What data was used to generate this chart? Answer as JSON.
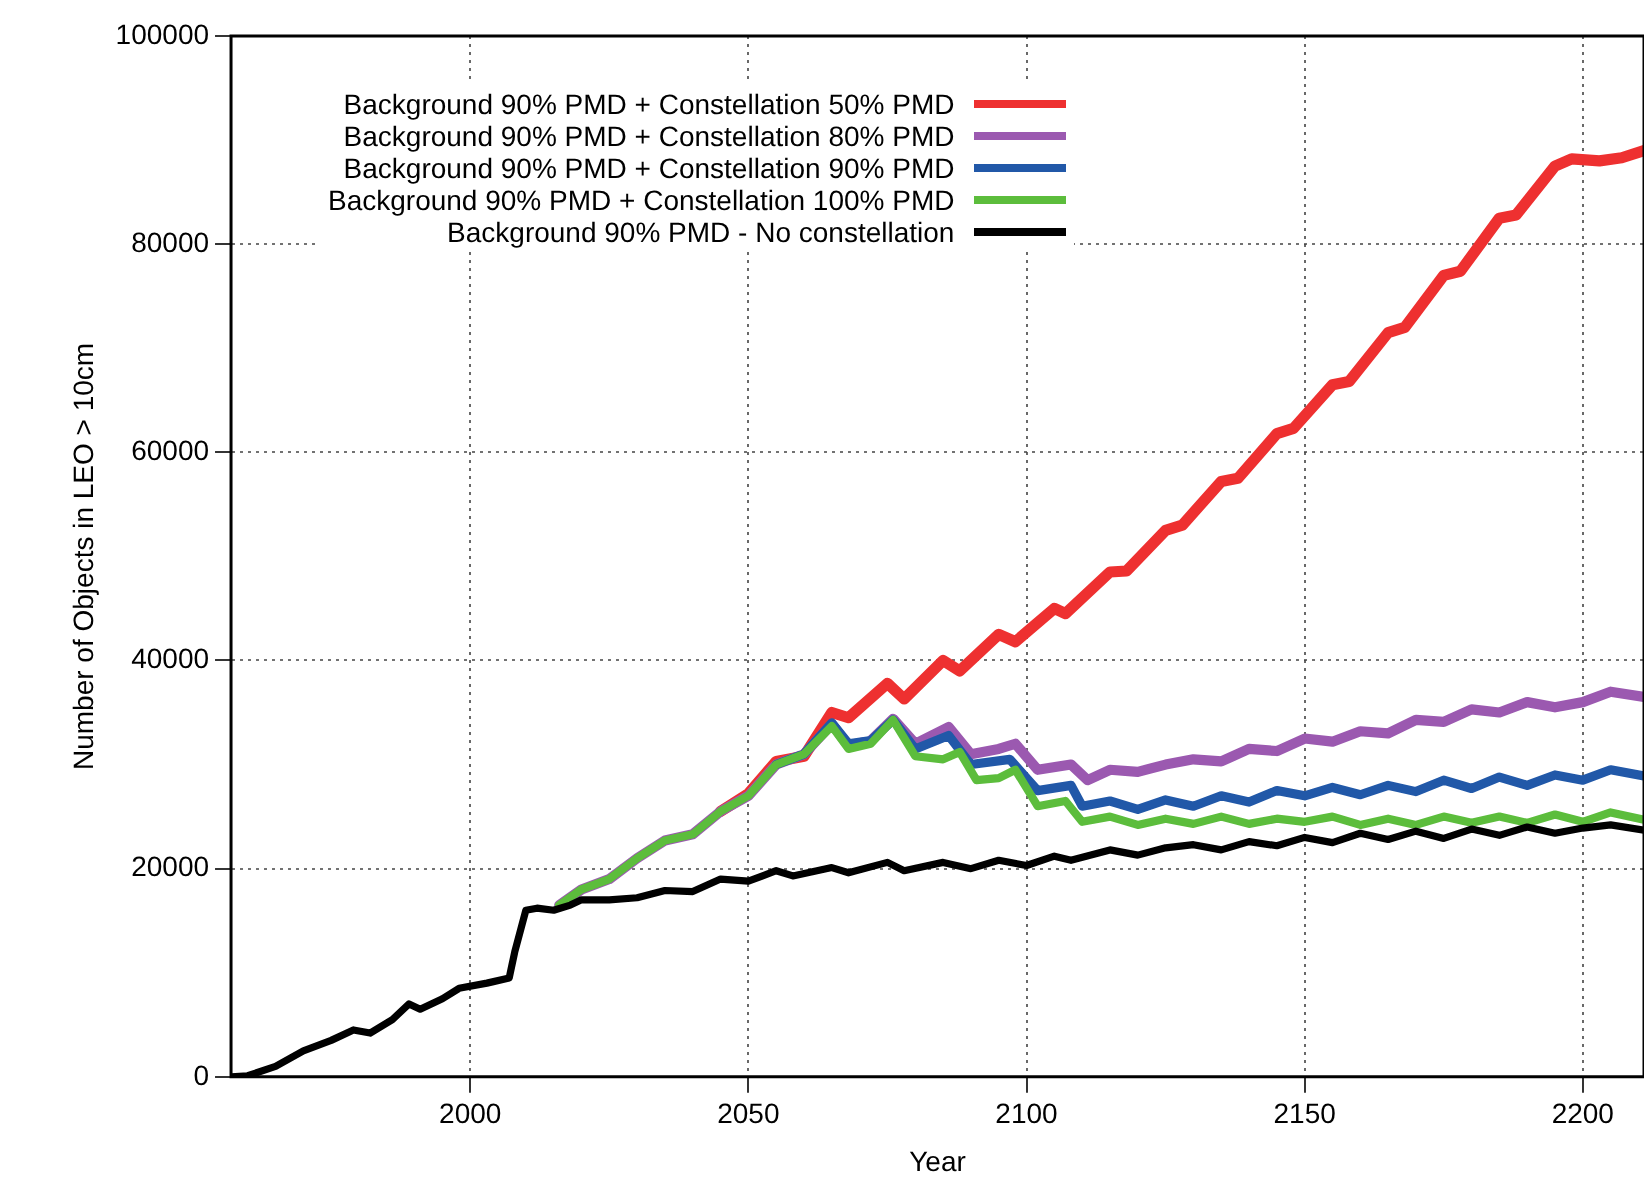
{
  "chart_data": {
    "type": "line",
    "xlabel": "Year",
    "ylabel": "Number of Objects in LEO > 10cm",
    "xlim": [
      1957,
      2211
    ],
    "xticks": [
      2000,
      2050,
      2100,
      2150,
      2200
    ],
    "ylim": [
      0,
      100000
    ],
    "yticks": [
      0,
      20000,
      40000,
      60000,
      80000,
      100000
    ],
    "grid": true,
    "legend": "top left",
    "marker": "none",
    "line_style": "solid",
    "series": [
      {
        "name": "Background 90% PMD + Constellation 50% PMD",
        "color": "#ee3030",
        "x": [
          2045,
          2050,
          2055,
          2060,
          2065,
          2068,
          2075,
          2078,
          2085,
          2088,
          2095,
          2098,
          2105,
          2107,
          2115,
          2118,
          2125,
          2128,
          2135,
          2138,
          2145,
          2148,
          2155,
          2158,
          2165,
          2168,
          2175,
          2178,
          2185,
          2188,
          2195,
          2198,
          2203,
          2207,
          2211
        ],
        "values": [
          25500,
          27200,
          30300,
          30800,
          35000,
          34500,
          37800,
          36300,
          40000,
          39000,
          42500,
          41800,
          45000,
          44500,
          48500,
          48600,
          52500,
          53000,
          57200,
          57500,
          61800,
          62300,
          66500,
          66800,
          71500,
          72000,
          77000,
          77400,
          82500,
          82800,
          87500,
          88200,
          88000,
          88300,
          89000
        ]
      },
      {
        "name": "Background 90% PMD + Constellation 80% PMD",
        "color": "#9b59b0",
        "x": [
          2016,
          2020,
          2025,
          2030,
          2035,
          2040,
          2045,
          2050,
          2055,
          2060,
          2065,
          2068,
          2072,
          2076,
          2080,
          2086,
          2090,
          2095,
          2098,
          2102,
          2108,
          2111,
          2115,
          2120,
          2125,
          2130,
          2135,
          2140,
          2145,
          2150,
          2155,
          2160,
          2165,
          2170,
          2175,
          2180,
          2185,
          2190,
          2195,
          2200,
          2205,
          2211
        ],
        "values": [
          16500,
          18000,
          19000,
          21000,
          22700,
          23300,
          25500,
          27000,
          30000,
          31000,
          33900,
          31800,
          32300,
          34400,
          32000,
          33600,
          31000,
          31500,
          32000,
          29500,
          30000,
          28500,
          29500,
          29300,
          30000,
          30500,
          30300,
          31500,
          31300,
          32500,
          32200,
          33200,
          33000,
          34300,
          34100,
          35300,
          35000,
          36000,
          35500,
          36000,
          37000,
          36500
        ]
      },
      {
        "name": "Background 90% PMD + Constellation 90% PMD",
        "color": "#2158a8",
        "x": [
          2055,
          2060,
          2065,
          2068,
          2072,
          2076,
          2080,
          2086,
          2090,
          2097,
          2102,
          2108,
          2110,
          2115,
          2120,
          2125,
          2130,
          2135,
          2140,
          2145,
          2150,
          2155,
          2160,
          2165,
          2170,
          2175,
          2180,
          2185,
          2190,
          2195,
          2200,
          2205,
          2211
        ],
        "values": [
          30000,
          31000,
          34000,
          32000,
          32300,
          34300,
          31500,
          32800,
          30000,
          30500,
          27500,
          28000,
          26000,
          26500,
          25700,
          26600,
          26000,
          27000,
          26400,
          27500,
          27000,
          27800,
          27100,
          28000,
          27400,
          28500,
          27700,
          28800,
          28000,
          29000,
          28500,
          29500,
          28900
        ]
      },
      {
        "name": "Background 90% PMD + Constellation 100% PMD",
        "color": "#5cbd3c",
        "x": [
          2016,
          2020,
          2025,
          2030,
          2035,
          2040,
          2045,
          2050,
          2055,
          2060,
          2065,
          2068,
          2072,
          2076,
          2080,
          2085,
          2088,
          2091,
          2095,
          2098,
          2102,
          2107,
          2110,
          2115,
          2120,
          2125,
          2130,
          2135,
          2140,
          2145,
          2150,
          2155,
          2160,
          2165,
          2170,
          2175,
          2180,
          2185,
          2190,
          2195,
          2200,
          2205,
          2211
        ],
        "values": [
          16500,
          18000,
          19000,
          21000,
          22700,
          23300,
          25500,
          27000,
          30000,
          31000,
          33700,
          31500,
          32000,
          34300,
          30800,
          30500,
          31200,
          28500,
          28700,
          29500,
          26000,
          26500,
          24500,
          25000,
          24200,
          24800,
          24300,
          25000,
          24300,
          24800,
          24500,
          25000,
          24200,
          24800,
          24200,
          25000,
          24400,
          25000,
          24400,
          25200,
          24500,
          25400,
          24700
        ]
      },
      {
        "name": "Background 90% PMD - No constellation",
        "color": "#000000",
        "x": [
          1957,
          1960,
          1965,
          1970,
          1975,
          1979,
          1982,
          1986,
          1989,
          1991,
          1995,
          1998,
          2003,
          2007,
          2008,
          2010,
          2012,
          2015,
          2018,
          2020,
          2025,
          2030,
          2035,
          2040,
          2045,
          2050,
          2055,
          2058,
          2065,
          2068,
          2075,
          2078,
          2085,
          2090,
          2095,
          2100,
          2105,
          2108,
          2115,
          2120,
          2125,
          2130,
          2135,
          2140,
          2145,
          2150,
          2155,
          2160,
          2165,
          2170,
          2175,
          2180,
          2185,
          2190,
          2195,
          2200,
          2205,
          2211
        ],
        "values": [
          0,
          100,
          1000,
          2500,
          3500,
          4500,
          4200,
          5500,
          7000,
          6500,
          7500,
          8500,
          9000,
          9500,
          12000,
          16000,
          16200,
          16000,
          16500,
          17000,
          17000,
          17200,
          17900,
          17800,
          19000,
          18800,
          19800,
          19300,
          20100,
          19600,
          20600,
          19800,
          20600,
          20000,
          20800,
          20300,
          21200,
          20800,
          21800,
          21300,
          22000,
          22300,
          21800,
          22600,
          22200,
          23000,
          22500,
          23400,
          22800,
          23600,
          22900,
          23800,
          23200,
          24000,
          23400,
          23900,
          24200,
          23700
        ]
      }
    ]
  }
}
